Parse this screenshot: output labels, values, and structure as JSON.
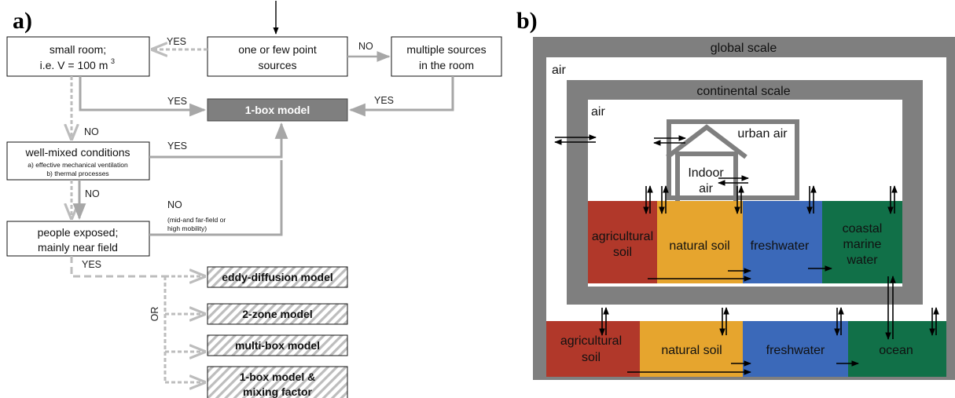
{
  "panel_a": {
    "label": "a)",
    "boxes": {
      "small_room_line1": "small room;",
      "small_room_line2": "i.e. V = 100 m",
      "small_room_sup": "3",
      "point_sources_line1": "one or few point",
      "point_sources_line2": "sources",
      "multiple_sources_line1": "multiple sources",
      "multiple_sources_line2": "in the room",
      "one_box": "1-box model",
      "well_mixed_title": "well-mixed conditions",
      "well_mixed_a": "a) effective mechanical ventilation",
      "well_mixed_b": "b) thermal processes",
      "people_line1": "people exposed;",
      "people_line2": "mainly near field",
      "eddy": "eddy-diffusion model",
      "two_zone": "2-zone model",
      "multi_box": "multi-box model",
      "mixing_line1": "1-box model &",
      "mixing_line2": "mixing factor"
    },
    "edges": {
      "yes_top": "YES",
      "no_top": "NO",
      "yes_to_box": "YES",
      "yes_from_multiple": "YES",
      "no_left": "NO",
      "yes_well_mixed": "YES",
      "no_well_mixed": "NO",
      "no_people": "NO",
      "no_people_note1": "(mid-and far-field or",
      "no_people_note2": "high mobility)",
      "yes_people": "YES",
      "or": "OR"
    }
  },
  "panel_b": {
    "label": "b)",
    "global_scale": "global scale",
    "global_air": "air",
    "continental_scale": "continental scale",
    "continental_air": "air",
    "urban_air": "urban air",
    "indoor_line1": "Indoor",
    "indoor_line2": "air",
    "continental_compartments": [
      {
        "line1": "agricultural",
        "line2": "soil",
        "color": "#b1382a"
      },
      {
        "line1": "natural soil",
        "line2": "",
        "color": "#e6a52e"
      },
      {
        "line1": "freshwater",
        "line2": "",
        "color": "#3b69b9"
      },
      {
        "line1": "coastal",
        "line2": "marine",
        "line3": "water",
        "color": "#117048"
      }
    ],
    "global_compartments": [
      {
        "line1": "agricultural",
        "line2": "soil",
        "color": "#b1382a"
      },
      {
        "line1": "natural soil",
        "color": "#e6a52e"
      },
      {
        "line1": "freshwater",
        "color": "#3b69b9"
      },
      {
        "line1": "ocean",
        "color": "#117048"
      }
    ],
    "frame_color": "#7f7f7f"
  }
}
